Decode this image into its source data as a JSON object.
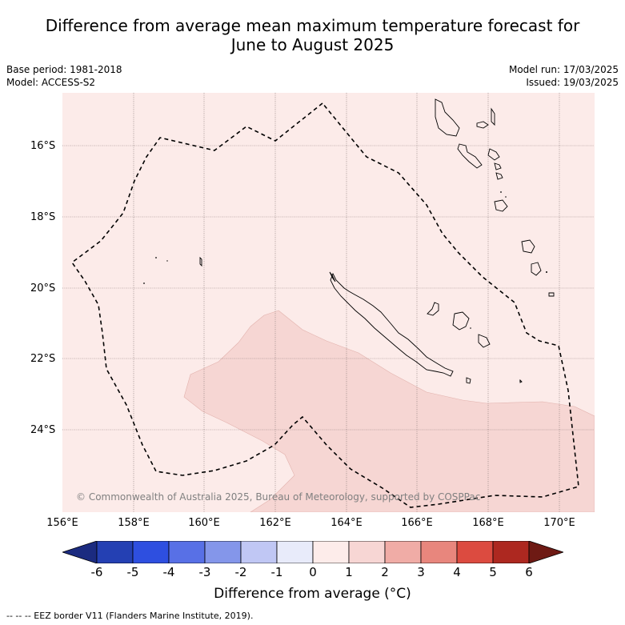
{
  "title_line1": "Difference from average mean maximum temperature forecast for",
  "title_line2": "June to August 2025",
  "base_period": "Base period: 1981-2018",
  "model": "Model: ACCESS-S2",
  "model_run": "Model run: 17/03/2025",
  "issued": "Issued: 19/03/2025",
  "credit": "© Commonwealth of Australia 2025, Bureau of Meteorology, supported by COSPPac",
  "lat_labels": [
    "16°S",
    "18°S",
    "20°S",
    "22°S",
    "24°S"
  ],
  "lon_labels": [
    "156°E",
    "158°E",
    "160°E",
    "162°E",
    "164°E",
    "166°E",
    "168°E",
    "170°E"
  ],
  "colorbar": {
    "ticks": [
      "-6",
      "-5",
      "-4",
      "-3",
      "-2",
      "-1",
      "0",
      "1",
      "2",
      "3",
      "4",
      "5",
      "6"
    ],
    "colors": [
      "#1b2b80",
      "#2440b3",
      "#2e4fe0",
      "#5870e6",
      "#8496ea",
      "#c0c7f4",
      "#e8ebfa",
      "#fdecea",
      "#f7d6d4",
      "#f0aca6",
      "#e8867d",
      "#dc4b40",
      "#ad2820",
      "#6e1a14"
    ],
    "label": "Difference from average (°C)"
  },
  "legend_text": "--  --  -- EEZ border V11 (Flanders Marine Institute, 2019).",
  "map_data": {
    "region": "New Caledonia / Vanuatu",
    "lat_range": [
      -26.0,
      -14.5
    ],
    "lon_range": [
      156.0,
      171.0
    ],
    "background_anomaly_class": "0 to 1",
    "southern_anomaly_class": "1 to 2"
  }
}
